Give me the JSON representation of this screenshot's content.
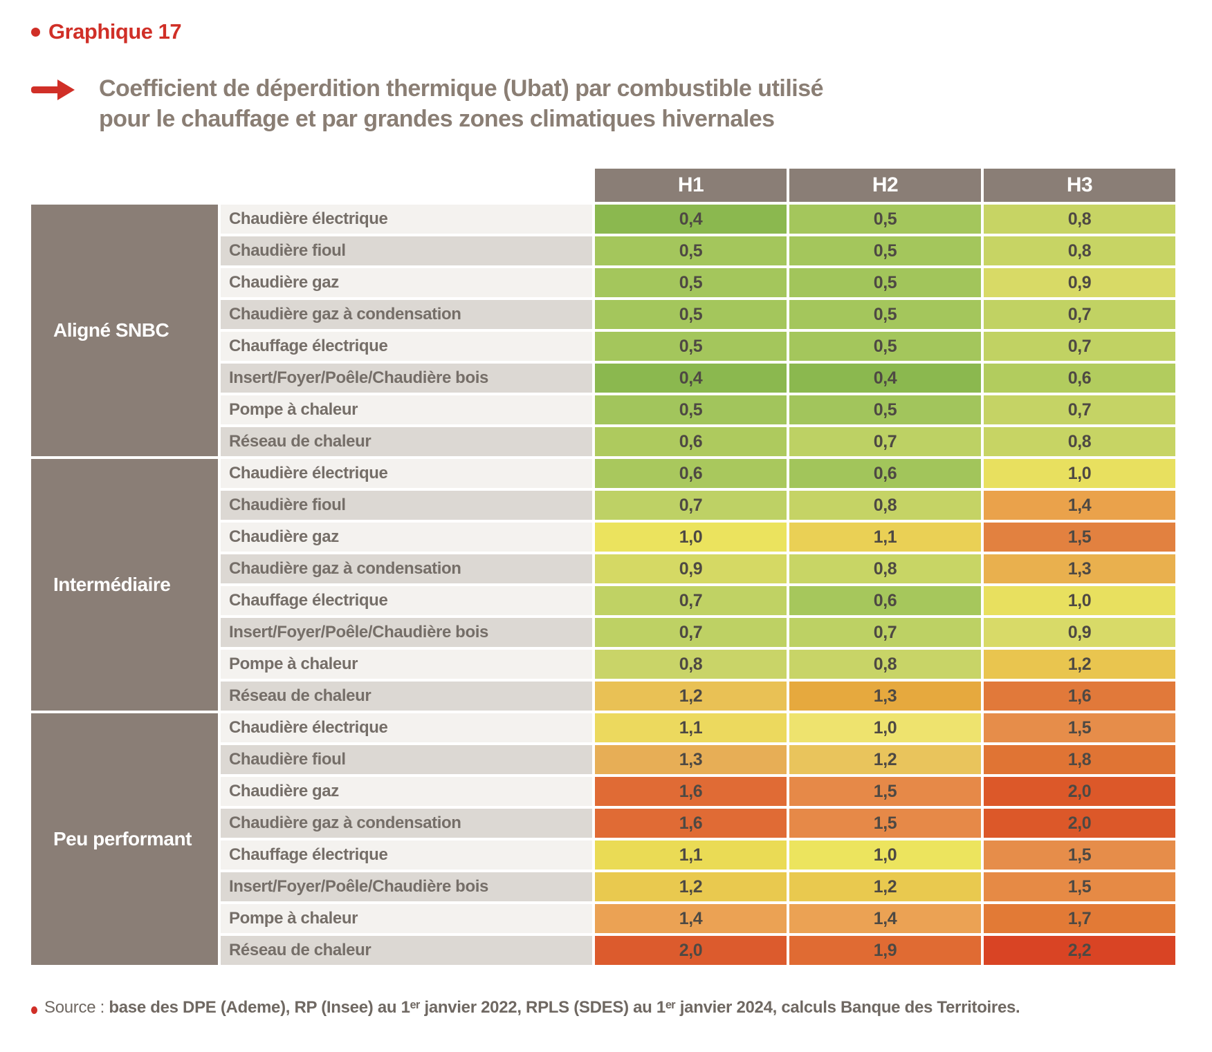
{
  "page": {
    "kicker": "Graphique 17",
    "title_line1": "Coefficient de déperdition thermique (Ubat) par combustible utilisé",
    "title_line2": "pour le chauffage et par grandes zones climatiques hivernales",
    "source_label": "Source :",
    "source_text": "base des DPE (Ademe), RP (Insee) au 1ᵉʳ janvier 2022, RPLS (SDES) au 1ᵉʳ janvier 2024, calculs Banque des Territoires."
  },
  "colors": {
    "accent_red": "#d02f27",
    "header_bg": "#8a7e76",
    "group_bg": "#8a7e76",
    "row_light": "#f4f2ef",
    "row_dark": "#dcd8d3",
    "label_text": "#756e68",
    "value_text": "#4e4943",
    "title_text": "#8a7e74"
  },
  "chart_data": {
    "type": "heatmap",
    "title": "Coefficient de déperdition thermique (Ubat) par combustible utilisé pour le chauffage et par grandes zones climatiques hivernales",
    "columns": [
      "H1",
      "H2",
      "H3"
    ],
    "value_scale_hint": "green (low ~0.4) to red (high ~2.2)",
    "groups": [
      {
        "name": "Aligné SNBC",
        "rows": [
          {
            "label": "Chaudière électrique",
            "cells": [
              {
                "value": 0.4,
                "display": "0,4",
                "color": "#8bb84f"
              },
              {
                "value": 0.5,
                "display": "0,5",
                "color": "#a4c65c"
              },
              {
                "value": 0.8,
                "display": "0,8",
                "color": "#c7d464"
              }
            ]
          },
          {
            "label": "Chaudière fioul",
            "cells": [
              {
                "value": 0.5,
                "display": "0,5",
                "color": "#a4c65c"
              },
              {
                "value": 0.5,
                "display": "0,5",
                "color": "#a4c65c"
              },
              {
                "value": 0.8,
                "display": "0,8",
                "color": "#c7d464"
              }
            ]
          },
          {
            "label": "Chaudière gaz",
            "cells": [
              {
                "value": 0.5,
                "display": "0,5",
                "color": "#a4c65c"
              },
              {
                "value": 0.5,
                "display": "0,5",
                "color": "#a2c55b"
              },
              {
                "value": 0.9,
                "display": "0,9",
                "color": "#d8da66"
              }
            ]
          },
          {
            "label": "Chaudière gaz à condensation",
            "cells": [
              {
                "value": 0.5,
                "display": "0,5",
                "color": "#a4c65c"
              },
              {
                "value": 0.5,
                "display": "0,5",
                "color": "#a4c65c"
              },
              {
                "value": 0.7,
                "display": "0,7",
                "color": "#c1d263"
              }
            ]
          },
          {
            "label": "Chauffage électrique",
            "cells": [
              {
                "value": 0.5,
                "display": "0,5",
                "color": "#a4c65c"
              },
              {
                "value": 0.5,
                "display": "0,5",
                "color": "#a4c65c"
              },
              {
                "value": 0.7,
                "display": "0,7",
                "color": "#c1d263"
              }
            ]
          },
          {
            "label": "Insert/Foyer/Poêle/Chaudière bois",
            "cells": [
              {
                "value": 0.4,
                "display": "0,4",
                "color": "#8bb84f"
              },
              {
                "value": 0.4,
                "display": "0,4",
                "color": "#8bb84f"
              },
              {
                "value": 0.6,
                "display": "0,6",
                "color": "#b2cc5e"
              }
            ]
          },
          {
            "label": "Pompe à chaleur",
            "cells": [
              {
                "value": 0.5,
                "display": "0,5",
                "color": "#a2c55c"
              },
              {
                "value": 0.5,
                "display": "0,5",
                "color": "#a2c55c"
              },
              {
                "value": 0.7,
                "display": "0,7",
                "color": "#c5d365"
              }
            ]
          },
          {
            "label": "Réseau de chaleur",
            "cells": [
              {
                "value": 0.6,
                "display": "0,6",
                "color": "#aeca5e"
              },
              {
                "value": 0.7,
                "display": "0,7",
                "color": "#bdd164"
              },
              {
                "value": 0.8,
                "display": "0,8",
                "color": "#c7d464"
              }
            ]
          }
        ]
      },
      {
        "name": "Intermédiaire",
        "rows": [
          {
            "label": "Chaudière électrique",
            "cells": [
              {
                "value": 0.6,
                "display": "0,6",
                "color": "#a9c85d"
              },
              {
                "value": 0.6,
                "display": "0,6",
                "color": "#a2c55b"
              },
              {
                "value": 1.0,
                "display": "1,0",
                "color": "#e8e05f"
              }
            ]
          },
          {
            "label": "Chaudière fioul",
            "cells": [
              {
                "value": 0.7,
                "display": "0,7",
                "color": "#bed165"
              },
              {
                "value": 0.8,
                "display": "0,8",
                "color": "#c5d365"
              },
              {
                "value": 1.4,
                "display": "1,4",
                "color": "#eaa24b"
              }
            ]
          },
          {
            "label": "Chaudière gaz",
            "cells": [
              {
                "value": 1.0,
                "display": "1,0",
                "color": "#ebe35e"
              },
              {
                "value": 1.1,
                "display": "1,1",
                "color": "#ead055"
              },
              {
                "value": 1.5,
                "display": "1,5",
                "color": "#e28140"
              }
            ]
          },
          {
            "label": "Chaudière gaz à condensation",
            "cells": [
              {
                "value": 0.9,
                "display": "0,9",
                "color": "#d5d964"
              },
              {
                "value": 0.8,
                "display": "0,8",
                "color": "#c8d565"
              },
              {
                "value": 1.3,
                "display": "1,3",
                "color": "#e9b04e"
              }
            ]
          },
          {
            "label": "Chauffage électrique",
            "cells": [
              {
                "value": 0.7,
                "display": "0,7",
                "color": "#c0d264"
              },
              {
                "value": 0.6,
                "display": "0,6",
                "color": "#a6c75c"
              },
              {
                "value": 1.0,
                "display": "1,0",
                "color": "#e8e05f"
              }
            ]
          },
          {
            "label": "Insert/Foyer/Poêle/Chaudière bois",
            "cells": [
              {
                "value": 0.7,
                "display": "0,7",
                "color": "#bed164"
              },
              {
                "value": 0.7,
                "display": "0,7",
                "color": "#bdd164"
              },
              {
                "value": 0.9,
                "display": "0,9",
                "color": "#d8da68"
              }
            ]
          },
          {
            "label": "Pompe à chaleur",
            "cells": [
              {
                "value": 0.8,
                "display": "0,8",
                "color": "#c9d468"
              },
              {
                "value": 0.8,
                "display": "0,8",
                "color": "#c8d467"
              },
              {
                "value": 1.2,
                "display": "1,2",
                "color": "#e9c54f"
              }
            ]
          },
          {
            "label": "Réseau de chaleur",
            "cells": [
              {
                "value": 1.2,
                "display": "1,2",
                "color": "#e9c155"
              },
              {
                "value": 1.3,
                "display": "1,3",
                "color": "#e6a93e"
              },
              {
                "value": 1.6,
                "display": "1,6",
                "color": "#e1793a"
              }
            ]
          }
        ]
      },
      {
        "name": "Peu performant",
        "rows": [
          {
            "label": "Chaudière électrique",
            "cells": [
              {
                "value": 1.1,
                "display": "1,1",
                "color": "#ecd95e"
              },
              {
                "value": 1.0,
                "display": "1,0",
                "color": "#eee36e"
              },
              {
                "value": 1.5,
                "display": "1,5",
                "color": "#e68d4a"
              }
            ]
          },
          {
            "label": "Chaudière fioul",
            "cells": [
              {
                "value": 1.3,
                "display": "1,3",
                "color": "#e7ae56"
              },
              {
                "value": 1.2,
                "display": "1,2",
                "color": "#e9c45c"
              },
              {
                "value": 1.8,
                "display": "1,8",
                "color": "#e07434"
              }
            ]
          },
          {
            "label": "Chaudière gaz",
            "cells": [
              {
                "value": 1.6,
                "display": "1,6",
                "color": "#e06b35"
              },
              {
                "value": 1.5,
                "display": "1,5",
                "color": "#e68948"
              },
              {
                "value": 2.0,
                "display": "2,0",
                "color": "#dc5829"
              }
            ]
          },
          {
            "label": "Chaudière gaz à condensation",
            "cells": [
              {
                "value": 1.6,
                "display": "1,6",
                "color": "#e06b35"
              },
              {
                "value": 1.5,
                "display": "1,5",
                "color": "#e68948"
              },
              {
                "value": 2.0,
                "display": "2,0",
                "color": "#dc5829"
              }
            ]
          },
          {
            "label": "Chauffage électrique",
            "cells": [
              {
                "value": 1.1,
                "display": "1,1",
                "color": "#eadb55"
              },
              {
                "value": 1.0,
                "display": "1,0",
                "color": "#ece45e"
              },
              {
                "value": 1.5,
                "display": "1,5",
                "color": "#e68d4a"
              }
            ]
          },
          {
            "label": "Insert/Foyer/Poêle/Chaudière bois",
            "cells": [
              {
                "value": 1.2,
                "display": "1,2",
                "color": "#e9c94f"
              },
              {
                "value": 1.2,
                "display": "1,2",
                "color": "#e9c94f"
              },
              {
                "value": 1.5,
                "display": "1,5",
                "color": "#e68a45"
              }
            ]
          },
          {
            "label": "Pompe à chaleur",
            "cells": [
              {
                "value": 1.4,
                "display": "1,4",
                "color": "#eba254"
              },
              {
                "value": 1.4,
                "display": "1,4",
                "color": "#eba254"
              },
              {
                "value": 1.7,
                "display": "1,7",
                "color": "#e27a36"
              }
            ]
          },
          {
            "label": "Réseau de chaleur",
            "cells": [
              {
                "value": 2.0,
                "display": "2,0",
                "color": "#dc5b2d"
              },
              {
                "value": 1.9,
                "display": "1,9",
                "color": "#e06b33"
              },
              {
                "value": 2.2,
                "display": "2,2",
                "color": "#d94424"
              }
            ]
          }
        ]
      }
    ]
  }
}
